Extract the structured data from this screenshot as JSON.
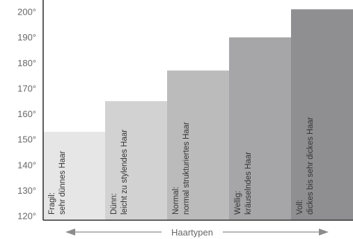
{
  "chart_data": {
    "type": "bar",
    "title": "",
    "xlabel": "Haartypen",
    "ylabel": "",
    "ylim": [
      120,
      200
    ],
    "y_ticks": [
      "200°",
      "190°",
      "180°",
      "170°",
      "160°",
      "150°",
      "140°",
      "130°",
      "120°"
    ],
    "y_tick_values": [
      200,
      190,
      180,
      170,
      160,
      150,
      140,
      130,
      120
    ],
    "grid": false,
    "legend": "none",
    "categories": [
      {
        "line1": "Fragil:",
        "line2": "sehr dünnes Haar"
      },
      {
        "line1": "Dünn:",
        "line2": "leicht zu stylendes Haar"
      },
      {
        "line1": "Normal:",
        "line2": "normal strukturiertes Haar"
      },
      {
        "line1": "Wellig:",
        "line2": "kräuselndes Haar"
      },
      {
        "line1": "Voll:",
        "line2": "dickes bis sehr dickes Haar"
      }
    ],
    "values": [
      153,
      165,
      177,
      190,
      201
    ],
    "colors": [
      "#e6e6e6",
      "#d2d2d3",
      "#bbbbbc",
      "#a6a6a8",
      "#8f8f91"
    ],
    "axis_color": "#333333",
    "arrow_color": "#8c8c8c"
  }
}
